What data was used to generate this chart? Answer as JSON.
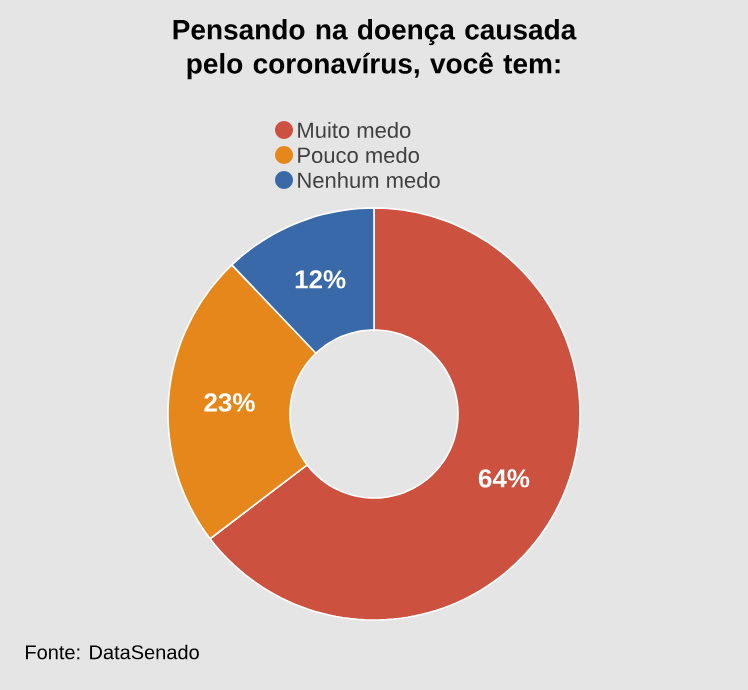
{
  "chart_data": {
    "type": "donut",
    "title": "Pensando na doença causada pelo coronavírus, você tem:",
    "categories": [
      "Muito medo",
      "Pouco medo",
      "Nenhum medo"
    ],
    "values": [
      64,
      23,
      12
    ],
    "value_labels": [
      "64%",
      "23%",
      "12%"
    ],
    "colors": [
      "#cc513f",
      "#e5871b",
      "#3a69aa"
    ],
    "legend": "top",
    "annotations": [
      "Fonte: DataSenado"
    ]
  }
}
